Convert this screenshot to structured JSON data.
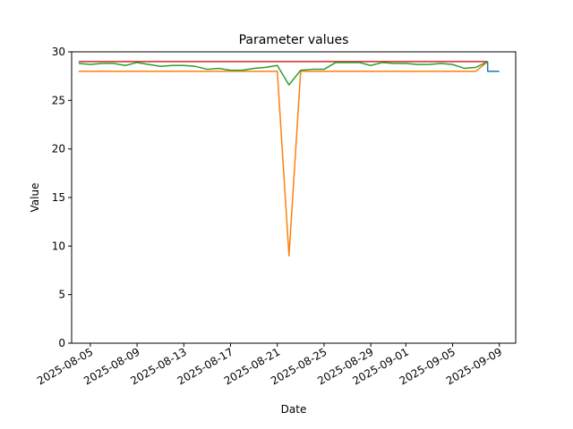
{
  "chart_data": {
    "type": "line",
    "title": "Parameter values",
    "xlabel": "Date",
    "ylabel": "Value",
    "ylim": [
      0,
      30
    ],
    "xlim": [
      "2025-08-04",
      "2025-09-10"
    ],
    "grid": false,
    "legend": "none",
    "yticks": [
      0,
      5,
      10,
      15,
      20,
      25,
      30
    ],
    "xticks": [
      "2025-08-05",
      "2025-08-09",
      "2025-08-13",
      "2025-08-17",
      "2025-08-21",
      "2025-08-25",
      "2025-08-29",
      "2025-09-01",
      "2025-09-05",
      "2025-09-09"
    ],
    "series": [
      {
        "color": "#d62728",
        "x": [
          "2025-08-04",
          "2025-09-08"
        ],
        "values": [
          29.0,
          29.0
        ]
      },
      {
        "color": "#ff7f0e",
        "x": [
          "2025-08-04",
          "2025-08-21",
          "2025-08-22",
          "2025-08-23",
          "2025-09-07",
          "2025-09-08"
        ],
        "values": [
          28.0,
          28.0,
          9.0,
          28.0,
          28.0,
          29.0
        ]
      },
      {
        "color": "#2ca02c",
        "x": [
          "2025-08-04",
          "2025-08-05",
          "2025-08-06",
          "2025-08-07",
          "2025-08-08",
          "2025-08-09",
          "2025-08-10",
          "2025-08-11",
          "2025-08-12",
          "2025-08-13",
          "2025-08-14",
          "2025-08-15",
          "2025-08-16",
          "2025-08-17",
          "2025-08-18",
          "2025-08-19",
          "2025-08-20",
          "2025-08-21",
          "2025-08-22",
          "2025-08-23",
          "2025-08-24",
          "2025-08-25",
          "2025-08-26",
          "2025-08-27",
          "2025-08-28",
          "2025-08-29",
          "2025-08-30",
          "2025-08-31",
          "2025-09-01",
          "2025-09-02",
          "2025-09-03",
          "2025-09-04",
          "2025-09-05",
          "2025-09-06",
          "2025-09-07",
          "2025-09-08"
        ],
        "values": [
          28.8,
          28.7,
          28.8,
          28.8,
          28.6,
          28.9,
          28.7,
          28.5,
          28.6,
          28.6,
          28.5,
          28.2,
          28.3,
          28.1,
          28.1,
          28.3,
          28.4,
          28.6,
          26.6,
          28.1,
          28.2,
          28.2,
          28.9,
          28.9,
          28.9,
          28.6,
          28.9,
          28.8,
          28.8,
          28.7,
          28.7,
          28.8,
          28.7,
          28.3,
          28.4,
          29.0
        ]
      },
      {
        "color": "#1f77b4",
        "x": [
          "2025-09-08",
          "2025-09-08",
          "2025-09-09"
        ],
        "values": [
          29.0,
          28.0,
          28.0
        ]
      }
    ]
  }
}
